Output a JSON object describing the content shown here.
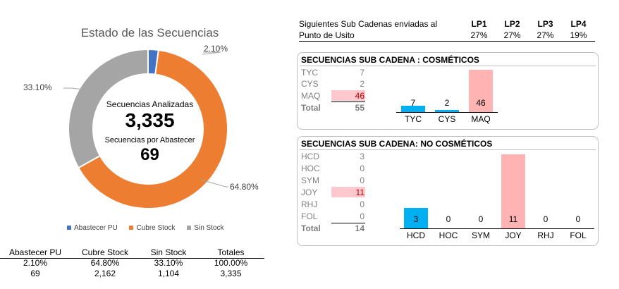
{
  "donut": {
    "title": "Estado de las Secuencias",
    "center_label_1": "Secuencias Analizadas",
    "center_value_1": "3,335",
    "center_label_2": "Secuencias por Abastecer",
    "center_value_2": "69",
    "slice_labels": [
      "2.10%",
      "64.80%",
      "33.10%"
    ]
  },
  "summary_table": {
    "headers": [
      "Abastecer PU",
      "Cubre Stock",
      "Sin Stock",
      "Totales"
    ],
    "row_pct": [
      "2.10%",
      "64.80%",
      "33.10%",
      "100.00%"
    ],
    "row_count": [
      "69",
      "2,162",
      "1,104",
      "3,335"
    ]
  },
  "lp_table": {
    "label_line1": "Siguientes Sub Cadenas enviadas al",
    "label_line2": "Punto de Usito",
    "headers": [
      "LP1",
      "LP2",
      "LP3",
      "LP4"
    ],
    "values": [
      "27%",
      "27%",
      "27%",
      "19%"
    ]
  },
  "cosmeticos": {
    "title": "SECUENCIAS SUB CADENA : COSMÉTICOS",
    "rows": [
      {
        "label": "TYC",
        "value": "7"
      },
      {
        "label": "CYS",
        "value": "2"
      },
      {
        "label": "MAQ",
        "value": "46"
      }
    ],
    "total_label": "Total",
    "total_value": "55"
  },
  "no_cosmeticos": {
    "title": "SECUENCIAS SUB CADENA: NO COSMÉTICOS",
    "rows": [
      {
        "label": "HCD",
        "value": "3"
      },
      {
        "label": "HOC",
        "value": "0"
      },
      {
        "label": "SYM",
        "value": "0"
      },
      {
        "label": "JOY",
        "value": "11"
      },
      {
        "label": "RHJ",
        "value": "0"
      },
      {
        "label": "FOL",
        "value": "0"
      }
    ],
    "total_label": "Total",
    "total_value": "14"
  },
  "chart_data": [
    {
      "type": "pie",
      "title": "Estado de las Secuencias",
      "categories": [
        "Abastecer PU",
        "Cubre Stock",
        "Sin Stock"
      ],
      "values": [
        2.1,
        64.8,
        33.1
      ],
      "colors": [
        "#4472c4",
        "#ed7d31",
        "#a5a5a5"
      ],
      "legend": "bottom"
    },
    {
      "type": "bar",
      "title": "",
      "categories": [
        "TYC",
        "CYS",
        "MAQ"
      ],
      "values": [
        7,
        2,
        46
      ],
      "colors": [
        "#00b0f0",
        "#00b0f0",
        "#ffb3b3"
      ]
    },
    {
      "type": "bar",
      "title": "",
      "categories": [
        "HCD",
        "HOC",
        "SYM",
        "JOY",
        "RHJ",
        "FOL"
      ],
      "values": [
        3,
        0,
        0,
        11,
        0,
        0
      ],
      "colors": [
        "#00b0f0",
        "#00b0f0",
        "#00b0f0",
        "#ffb3b3",
        "#00b0f0",
        "#00b0f0"
      ]
    }
  ]
}
